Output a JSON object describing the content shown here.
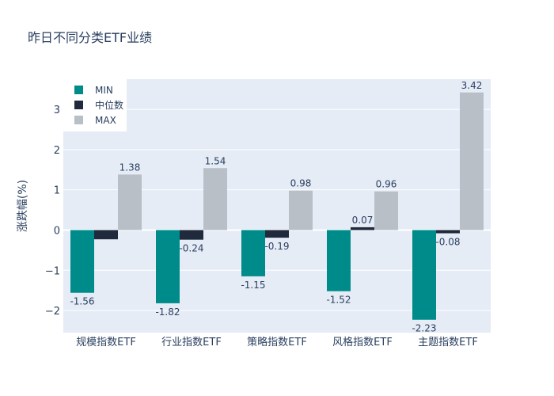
{
  "chart_data": {
    "type": "bar",
    "title": "昨日不同分类ETF业绩",
    "ylabel": "涨跌幅(%)",
    "xlabel": "",
    "categories": [
      "规模指数ETF",
      "行业指数ETF",
      "策略指数ETF",
      "风格指数ETF",
      "主题指数ETF"
    ],
    "series": [
      {
        "name": "MIN",
        "color": "#008b8b",
        "values": [
          -1.56,
          -1.82,
          -1.15,
          -1.52,
          -2.23
        ]
      },
      {
        "name": "中位数",
        "color": "#1f2a3c",
        "values": [
          -0.23,
          -0.24,
          -0.19,
          0.07,
          -0.08
        ]
      },
      {
        "name": "MAX",
        "color": "#b8bfc7",
        "values": [
          1.38,
          1.54,
          0.98,
          0.96,
          3.42
        ]
      }
    ],
    "labels": [
      [
        "-1.56",
        "-1.82",
        "-1.15",
        "-1.52",
        "-2.23"
      ],
      [
        "",
        "-0.24",
        "-0.19",
        "0.07",
        "-0.08"
      ],
      [
        "1.38",
        "1.54",
        "0.98",
        "0.96",
        "3.42"
      ]
    ],
    "ylim": [
      -2.55,
      3.75
    ],
    "yticks": [
      -2,
      -1,
      0,
      1,
      2,
      3
    ],
    "ytick_labels": [
      "−2",
      "−1",
      "0",
      "1",
      "2",
      "3"
    ],
    "grid": true,
    "legend_position": "top-left"
  }
}
